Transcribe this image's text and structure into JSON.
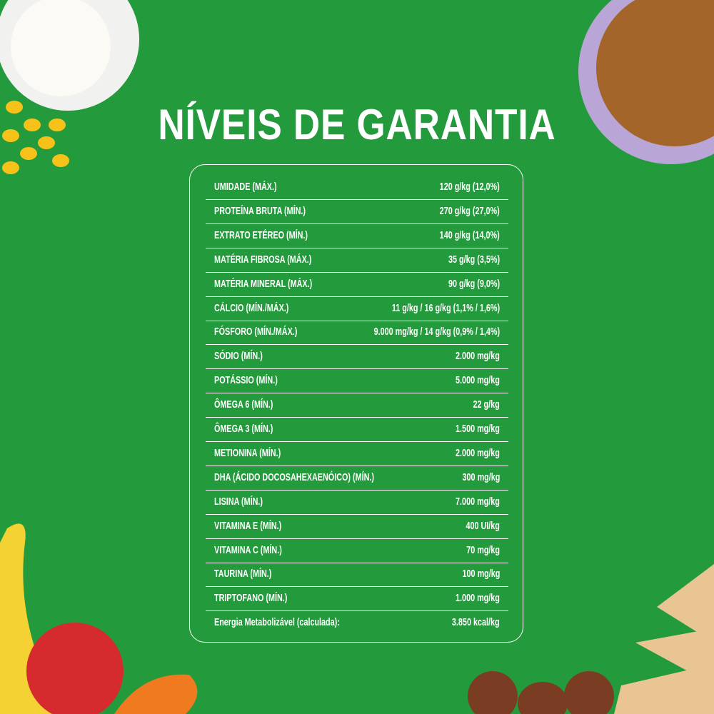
{
  "title": "NÍVEIS DE GARANTIA",
  "table": {
    "rows": [
      [
        "UMIDADE (MÁX.)",
        "120 g/kg (12,0%)"
      ],
      [
        "PROTEÍNA BRUTA (MÍN.)",
        "270 g/kg (27,0%)"
      ],
      [
        "EXTRATO ETÉREO (MÍN.)",
        "140 g/kg (14,0%)"
      ],
      [
        "MATÉRIA FIBROSA (MÁX.)",
        "35 g/kg (3,5%)"
      ],
      [
        "MATÉRIA MINERAL (MÁX.)",
        "90 g/kg (9,0%)"
      ],
      [
        "CÁLCIO (MÍN./MÁX.)",
        "11 g/kg / 16 g/kg (1,1% / 1,6%)"
      ],
      [
        "FÓSFORO (MÍN./MÁX.)",
        "9.000 mg/kg / 14 g/kg (0,9% / 1,4%)"
      ],
      [
        "SÓDIO (MÍN.)",
        "2.000 mg/kg"
      ],
      [
        "POTÁSSIO (MÍN.)",
        "5.000 mg/kg"
      ],
      [
        "ÔMEGA 6 (MÍN.)",
        "22 g/kg"
      ],
      [
        "ÔMEGA 3 (MÍN.)",
        "1.500 mg/kg"
      ],
      [
        "METIONINA (MÍN.)",
        "2.000 mg/kg"
      ],
      [
        "DHA (ÁCIDO DOCOSAHEXAENÓICO) (MÍN.)",
        "300 mg/kg"
      ],
      [
        "LISINA (MÍN.)",
        "7.000 mg/kg"
      ],
      [
        "VITAMINA E (MÍN.)",
        "400 UI/kg"
      ],
      [
        "VITAMINA C (MÍN.)",
        "70 mg/kg"
      ],
      [
        "TAURINA (MÍN.)",
        "100 mg/kg"
      ],
      [
        "TRIPTOFANO (MÍN.)",
        "1.000 mg/kg"
      ],
      [
        "Energia Metabolizável (calculada):",
        "3.850 kcal/kg"
      ]
    ]
  }
}
